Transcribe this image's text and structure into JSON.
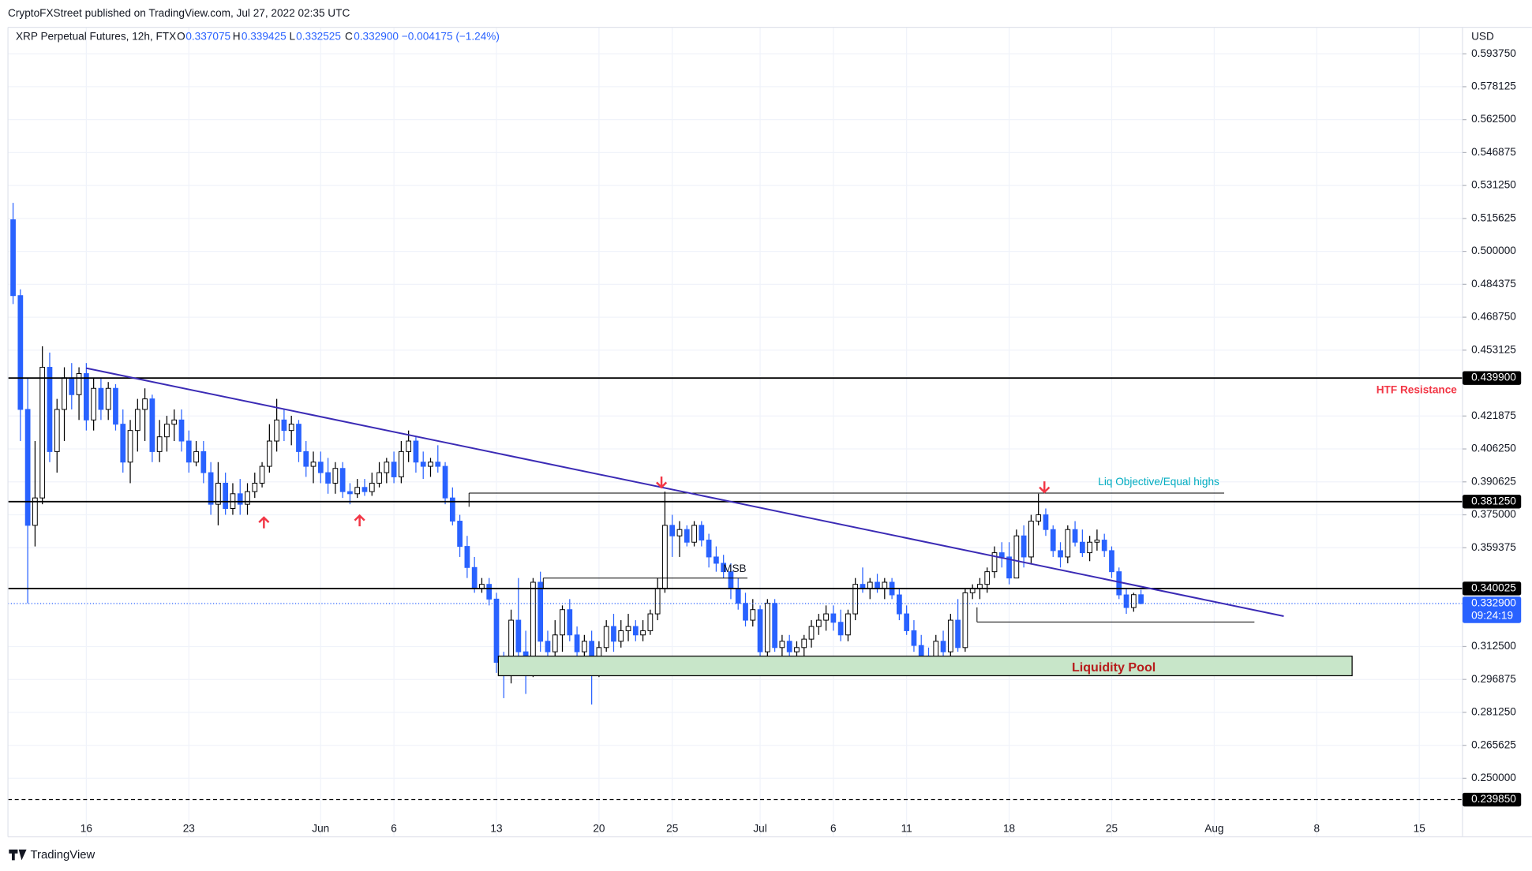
{
  "header": {
    "published": "CryptoFXStreet published on TradingView.com, Jul 27, 2022 02:35 UTC",
    "brand": "TradingView"
  },
  "chart_data": {
    "type": "candlestick",
    "legend": {
      "symbol": "XRP Perpetual Futures, 12h, FTX",
      "o_key": "O",
      "open": "0.337075",
      "h_key": "H",
      "high": "0.339425",
      "l_key": "L",
      "low": "0.332525",
      "c_key": "C",
      "close": "0.332900",
      "change": "−0.004175 (−1.24%)"
    },
    "currency": "USD",
    "up_color": "#ffffff",
    "down_color": "#2962ff",
    "outline_color": "#000000",
    "grid": true,
    "ylim": [
      0.2222,
      0.6063
    ],
    "yticks": [
      {
        "value": 0.25,
        "label": "0.250000"
      },
      0.265625,
      {
        "value": 0.28125,
        "label": "0.281250"
      },
      0.296875,
      {
        "value": 0.3125,
        "label": "0.312500"
      },
      0.359375,
      {
        "value": 0.375,
        "label": "0.375000"
      },
      0.390625,
      {
        "value": 0.40625,
        "label": "0.406250"
      },
      0.421875,
      0.453125,
      {
        "value": 0.46875,
        "label": "0.468750"
      },
      0.484375,
      {
        "value": 0.5,
        "label": "0.500000"
      },
      0.515625,
      {
        "value": 0.53125,
        "label": "0.531250"
      },
      0.546875,
      {
        "value": 0.5625,
        "label": "0.562500"
      },
      0.578125,
      {
        "value": 0.59375,
        "label": "0.593750"
      }
    ],
    "xlim": [
      -0.7,
      197.9
    ],
    "xticks": [
      {
        "value": 10,
        "label": "16"
      },
      {
        "value": 24,
        "label": "23"
      },
      {
        "value": 42,
        "label": "Jun"
      },
      {
        "value": 52,
        "label": "6"
      },
      {
        "value": 66,
        "label": "13"
      },
      {
        "value": 80,
        "label": "20"
      },
      {
        "value": 90,
        "label": "25"
      },
      {
        "value": 102,
        "label": "Jul"
      },
      {
        "value": 112,
        "label": "6"
      },
      {
        "value": 122,
        "label": "11"
      },
      {
        "value": 136,
        "label": "18"
      },
      {
        "value": 150,
        "label": "25"
      },
      {
        "value": 164,
        "label": "Aug"
      },
      {
        "value": 178,
        "label": "8"
      },
      {
        "value": 192,
        "label": "15"
      }
    ],
    "levels": [
      {
        "value": 0.4399,
        "label": "0.439900",
        "dashed": false
      },
      {
        "value": 0.38125,
        "label": "0.381250",
        "dashed": false
      },
      {
        "value": 0.340025,
        "label": "0.340025",
        "dashed": false
      },
      {
        "value": 0.23985,
        "label": "0.239850",
        "dashed": true
      }
    ],
    "last": {
      "value": 0.3329,
      "label": "0.332900",
      "countdown": "09:24:19",
      "color": "#2962ff"
    },
    "annotations": {
      "htf": "HTF Resistance",
      "liq": "Liq Objective/Equal highs",
      "msb": "MSB",
      "pool": "Liquidity Pool"
    },
    "ohlc": [
      [
        0.515,
        0.523,
        0.475,
        0.479
      ],
      [
        0.479,
        0.482,
        0.41,
        0.425
      ],
      [
        0.425,
        0.44,
        0.333,
        0.37
      ],
      [
        0.37,
        0.41,
        0.36,
        0.383
      ],
      [
        0.383,
        0.455,
        0.38,
        0.445
      ],
      [
        0.445,
        0.452,
        0.4,
        0.405
      ],
      [
        0.405,
        0.43,
        0.395,
        0.425
      ],
      [
        0.425,
        0.445,
        0.41,
        0.44
      ],
      [
        0.44,
        0.447,
        0.425,
        0.432
      ],
      [
        0.432,
        0.445,
        0.42,
        0.442
      ],
      [
        0.442,
        0.447,
        0.415,
        0.42
      ],
      [
        0.42,
        0.44,
        0.415,
        0.435
      ],
      [
        0.435,
        0.44,
        0.42,
        0.425
      ],
      [
        0.425,
        0.438,
        0.42,
        0.435
      ],
      [
        0.435,
        0.437,
        0.415,
        0.418
      ],
      [
        0.418,
        0.425,
        0.395,
        0.4
      ],
      [
        0.4,
        0.42,
        0.39,
        0.415
      ],
      [
        0.415,
        0.43,
        0.405,
        0.425
      ],
      [
        0.425,
        0.435,
        0.41,
        0.43
      ],
      [
        0.43,
        0.432,
        0.4,
        0.405
      ],
      [
        0.405,
        0.42,
        0.4,
        0.412
      ],
      [
        0.412,
        0.422,
        0.405,
        0.418
      ],
      [
        0.418,
        0.425,
        0.41,
        0.42
      ],
      [
        0.42,
        0.425,
        0.405,
        0.41
      ],
      [
        0.41,
        0.415,
        0.395,
        0.4
      ],
      [
        0.4,
        0.41,
        0.398,
        0.405
      ],
      [
        0.405,
        0.41,
        0.39,
        0.395
      ],
      [
        0.395,
        0.4,
        0.375,
        0.38
      ],
      [
        0.38,
        0.4,
        0.37,
        0.39
      ],
      [
        0.39,
        0.395,
        0.375,
        0.378
      ],
      [
        0.378,
        0.39,
        0.375,
        0.385
      ],
      [
        0.385,
        0.392,
        0.375,
        0.38
      ],
      [
        0.38,
        0.39,
        0.375,
        0.386
      ],
      [
        0.386,
        0.395,
        0.383,
        0.39
      ],
      [
        0.39,
        0.4,
        0.388,
        0.398
      ],
      [
        0.398,
        0.418,
        0.395,
        0.41
      ],
      [
        0.41,
        0.43,
        0.405,
        0.42
      ],
      [
        0.42,
        0.425,
        0.41,
        0.415
      ],
      [
        0.415,
        0.422,
        0.408,
        0.418
      ],
      [
        0.418,
        0.42,
        0.4,
        0.405
      ],
      [
        0.405,
        0.41,
        0.393,
        0.398
      ],
      [
        0.398,
        0.405,
        0.39,
        0.4
      ],
      [
        0.4,
        0.405,
        0.39,
        0.395
      ],
      [
        0.395,
        0.402,
        0.385,
        0.39
      ],
      [
        0.39,
        0.4,
        0.385,
        0.397
      ],
      [
        0.397,
        0.4,
        0.383,
        0.386
      ],
      [
        0.386,
        0.39,
        0.38,
        0.385
      ],
      [
        0.385,
        0.392,
        0.383,
        0.388
      ],
      [
        0.388,
        0.392,
        0.384,
        0.386
      ],
      [
        0.386,
        0.395,
        0.384,
        0.39
      ],
      [
        0.39,
        0.4,
        0.388,
        0.395
      ],
      [
        0.395,
        0.402,
        0.39,
        0.4
      ],
      [
        0.4,
        0.405,
        0.39,
        0.393
      ],
      [
        0.393,
        0.41,
        0.39,
        0.405
      ],
      [
        0.405,
        0.415,
        0.4,
        0.41
      ],
      [
        0.41,
        0.412,
        0.395,
        0.4
      ],
      [
        0.4,
        0.405,
        0.392,
        0.398
      ],
      [
        0.398,
        0.402,
        0.393,
        0.4
      ],
      [
        0.4,
        0.408,
        0.395,
        0.398
      ],
      [
        0.398,
        0.4,
        0.38,
        0.383
      ],
      [
        0.383,
        0.388,
        0.37,
        0.372
      ],
      [
        0.372,
        0.375,
        0.355,
        0.36
      ],
      [
        0.36,
        0.365,
        0.345,
        0.35
      ],
      [
        0.35,
        0.355,
        0.338,
        0.34
      ],
      [
        0.34,
        0.345,
        0.338,
        0.342
      ],
      [
        0.342,
        0.345,
        0.332,
        0.335
      ],
      [
        0.335,
        0.338,
        0.3,
        0.305
      ],
      [
        0.305,
        0.31,
        0.288,
        0.3
      ],
      [
        0.3,
        0.33,
        0.295,
        0.325
      ],
      [
        0.325,
        0.345,
        0.305,
        0.31
      ],
      [
        0.31,
        0.32,
        0.29,
        0.3
      ],
      [
        0.3,
        0.345,
        0.298,
        0.343
      ],
      [
        0.343,
        0.348,
        0.31,
        0.315
      ],
      [
        0.315,
        0.32,
        0.3,
        0.31
      ],
      [
        0.31,
        0.325,
        0.305,
        0.318
      ],
      [
        0.318,
        0.332,
        0.31,
        0.33
      ],
      [
        0.33,
        0.335,
        0.315,
        0.318
      ],
      [
        0.318,
        0.322,
        0.305,
        0.31
      ],
      [
        0.31,
        0.318,
        0.302,
        0.315
      ],
      [
        0.315,
        0.32,
        0.285,
        0.3
      ],
      [
        0.3,
        0.315,
        0.298,
        0.312
      ],
      [
        0.312,
        0.325,
        0.31,
        0.322
      ],
      [
        0.322,
        0.328,
        0.31,
        0.315
      ],
      [
        0.315,
        0.325,
        0.312,
        0.32
      ],
      [
        0.32,
        0.328,
        0.315,
        0.322
      ],
      [
        0.322,
        0.325,
        0.315,
        0.318
      ],
      [
        0.318,
        0.325,
        0.315,
        0.32
      ],
      [
        0.32,
        0.33,
        0.318,
        0.328
      ],
      [
        0.328,
        0.345,
        0.325,
        0.34
      ],
      [
        0.34,
        0.386,
        0.338,
        0.37
      ],
      [
        0.37,
        0.375,
        0.355,
        0.365
      ],
      [
        0.365,
        0.372,
        0.355,
        0.368
      ],
      [
        0.368,
        0.37,
        0.36,
        0.362
      ],
      [
        0.362,
        0.372,
        0.36,
        0.37
      ],
      [
        0.37,
        0.372,
        0.36,
        0.363
      ],
      [
        0.363,
        0.366,
        0.35,
        0.355
      ],
      [
        0.355,
        0.36,
        0.348,
        0.352
      ],
      [
        0.352,
        0.356,
        0.345,
        0.348
      ],
      [
        0.348,
        0.352,
        0.335,
        0.34
      ],
      [
        0.34,
        0.345,
        0.33,
        0.333
      ],
      [
        0.333,
        0.338,
        0.322,
        0.325
      ],
      [
        0.325,
        0.335,
        0.322,
        0.33
      ],
      [
        0.33,
        0.332,
        0.305,
        0.31
      ],
      [
        0.31,
        0.335,
        0.305,
        0.333
      ],
      [
        0.333,
        0.335,
        0.31,
        0.312
      ],
      [
        0.312,
        0.318,
        0.308,
        0.315
      ],
      [
        0.315,
        0.318,
        0.308,
        0.31
      ],
      [
        0.31,
        0.315,
        0.307,
        0.312
      ],
      [
        0.312,
        0.318,
        0.305,
        0.316
      ],
      [
        0.316,
        0.325,
        0.312,
        0.322
      ],
      [
        0.322,
        0.328,
        0.318,
        0.325
      ],
      [
        0.325,
        0.332,
        0.32,
        0.328
      ],
      [
        0.328,
        0.332,
        0.32,
        0.324
      ],
      [
        0.324,
        0.33,
        0.315,
        0.318
      ],
      [
        0.318,
        0.33,
        0.315,
        0.328
      ],
      [
        0.328,
        0.345,
        0.325,
        0.342
      ],
      [
        0.342,
        0.35,
        0.338,
        0.34
      ],
      [
        0.34,
        0.345,
        0.335,
        0.343
      ],
      [
        0.343,
        0.347,
        0.338,
        0.34
      ],
      [
        0.34,
        0.345,
        0.335,
        0.343
      ],
      [
        0.343,
        0.345,
        0.335,
        0.337
      ],
      [
        0.337,
        0.34,
        0.325,
        0.328
      ],
      [
        0.328,
        0.332,
        0.318,
        0.32
      ],
      [
        0.32,
        0.325,
        0.31,
        0.313
      ],
      [
        0.313,
        0.318,
        0.305,
        0.308
      ],
      [
        0.308,
        0.312,
        0.303,
        0.306
      ],
      [
        0.306,
        0.318,
        0.302,
        0.315
      ],
      [
        0.315,
        0.32,
        0.3,
        0.31
      ],
      [
        0.31,
        0.328,
        0.305,
        0.325
      ],
      [
        0.325,
        0.335,
        0.31,
        0.312
      ],
      [
        0.312,
        0.34,
        0.31,
        0.338
      ],
      [
        0.338,
        0.342,
        0.335,
        0.34
      ],
      [
        0.34,
        0.345,
        0.335,
        0.342
      ],
      [
        0.342,
        0.35,
        0.338,
        0.348
      ],
      [
        0.348,
        0.36,
        0.345,
        0.357
      ],
      [
        0.357,
        0.362,
        0.35,
        0.355
      ],
      [
        0.355,
        0.362,
        0.342,
        0.345
      ],
      [
        0.345,
        0.368,
        0.345,
        0.365
      ],
      [
        0.365,
        0.37,
        0.35,
        0.355
      ],
      [
        0.355,
        0.375,
        0.352,
        0.372
      ],
      [
        0.372,
        0.385,
        0.37,
        0.375
      ],
      [
        0.375,
        0.378,
        0.365,
        0.368
      ],
      [
        0.368,
        0.37,
        0.355,
        0.358
      ],
      [
        0.358,
        0.362,
        0.35,
        0.355
      ],
      [
        0.355,
        0.37,
        0.352,
        0.368
      ],
      [
        0.368,
        0.372,
        0.36,
        0.362
      ],
      [
        0.362,
        0.368,
        0.355,
        0.357
      ],
      [
        0.357,
        0.365,
        0.353,
        0.362
      ],
      [
        0.362,
        0.368,
        0.358,
        0.363
      ],
      [
        0.363,
        0.366,
        0.355,
        0.358
      ],
      [
        0.358,
        0.36,
        0.345,
        0.348
      ],
      [
        0.348,
        0.35,
        0.335,
        0.337
      ],
      [
        0.337,
        0.34,
        0.328,
        0.331
      ],
      [
        0.331,
        0.338,
        0.329,
        0.3371
      ],
      [
        0.337075,
        0.339425,
        0.332525,
        0.3329
      ]
    ]
  }
}
